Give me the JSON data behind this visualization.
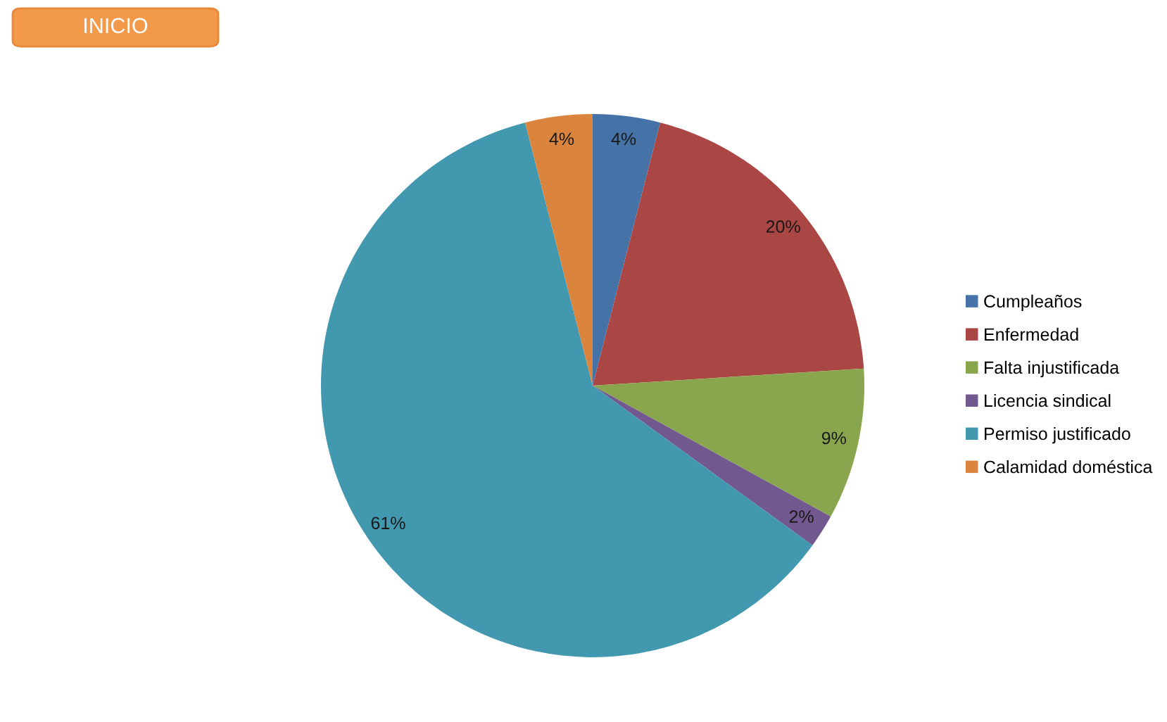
{
  "chart_data": {
    "type": "pie",
    "categories": [
      "Cumpleaños",
      "Enfermedad",
      "Falta injustificada",
      "Licencia sindical",
      "Permiso justificado",
      "Calamidad doméstica"
    ],
    "values": [
      4,
      20,
      9,
      2,
      61,
      4
    ],
    "colors": [
      "#4572a7",
      "#aa4643",
      "#89a54e",
      "#71588f",
      "#4198af",
      "#db843d"
    ],
    "value_labels": [
      "4%",
      "20%",
      "9%",
      "2%",
      "61%",
      "4%"
    ],
    "legend": "right",
    "annotations": [
      "INICIO"
    ]
  }
}
